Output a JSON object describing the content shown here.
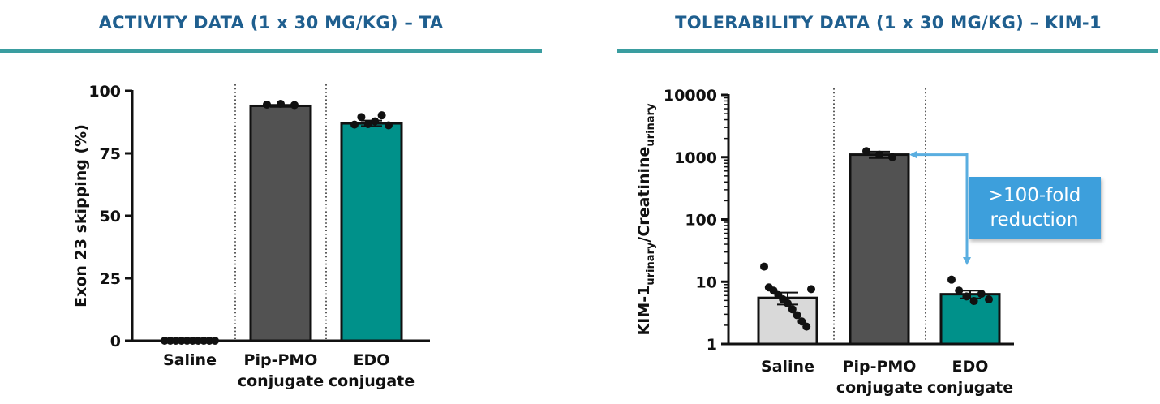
{
  "panels": [
    {
      "title": "ACTIVITY DATA (1 x 30 MG/KG) – TA"
    },
    {
      "title": "TOLERABILITY DATA (1 x 30 MG/KG) – KIM-1"
    }
  ],
  "colors": {
    "title": "#1f5f8f",
    "rule": "#3a9da0",
    "saline": "#d9d9d9",
    "pip_pmo": "#525252",
    "edo": "#00918a",
    "annotation_arrow": "#5aaee0",
    "annotation_box": "#3d9fdc"
  },
  "chart_data": [
    {
      "type": "bar",
      "title": "ACTIVITY DATA (1 x 30 MG/KG) – TA",
      "categories": [
        {
          "lines": [
            "Saline"
          ]
        },
        {
          "lines": [
            "Pip-PMO",
            "conjugate"
          ]
        },
        {
          "lines": [
            "EDO",
            "conjugate"
          ]
        }
      ],
      "ylabel": "Exon 23 skipping (%)",
      "ylim": [
        0,
        100
      ],
      "yscale": "linear",
      "yticks": [
        0,
        25,
        50,
        75,
        100
      ],
      "values": [
        0,
        94,
        87
      ],
      "error": [
        0,
        0.4,
        1.1
      ],
      "points": [
        [
          0,
          0,
          0,
          0,
          0,
          0,
          0,
          0,
          0,
          0
        ],
        [
          94.5,
          94.8,
          94.3
        ],
        [
          86.5,
          89.5,
          86.7,
          87.8,
          90.2,
          86.2
        ]
      ],
      "bar_colors": [
        "#d9d9d9",
        "#525252",
        "#00918a"
      ],
      "separators": "dotted lines between groups",
      "grid": false,
      "legend": "none"
    },
    {
      "type": "bar",
      "title": "TOLERABILITY DATA (1 x 30 MG/KG) – KIM-1",
      "categories": [
        {
          "lines": [
            "Saline"
          ]
        },
        {
          "lines": [
            "Pip-PMO",
            "conjugate"
          ]
        },
        {
          "lines": [
            "EDO",
            "conjugate"
          ]
        }
      ],
      "ylabel": {
        "main": "KIM-1",
        "sub1": "urinary",
        "sep": "/Creatinine",
        "sub2": "urinary"
      },
      "ylim": [
        1,
        10000
      ],
      "yscale": "log",
      "yticks": [
        1,
        10,
        100,
        1000,
        10000
      ],
      "values": [
        5.5,
        1100,
        6.3
      ],
      "error": [
        1.2,
        130,
        0.9
      ],
      "points": [
        [
          17.5,
          8.1,
          7.2,
          6.1,
          5.2,
          4.5,
          3.6,
          2.9,
          2.3,
          1.9,
          7.6
        ],
        [
          1250,
          1100,
          1000
        ],
        [
          10.8,
          7.2,
          5.8,
          4.9,
          6.4,
          5.2
        ]
      ],
      "bar_colors": [
        "#d9d9d9",
        "#525252",
        "#00918a"
      ],
      "separators": "dotted lines between groups",
      "annotation": {
        "lines": [
          ">100-fold",
          "reduction"
        ]
      },
      "grid": false,
      "legend": "none"
    }
  ]
}
